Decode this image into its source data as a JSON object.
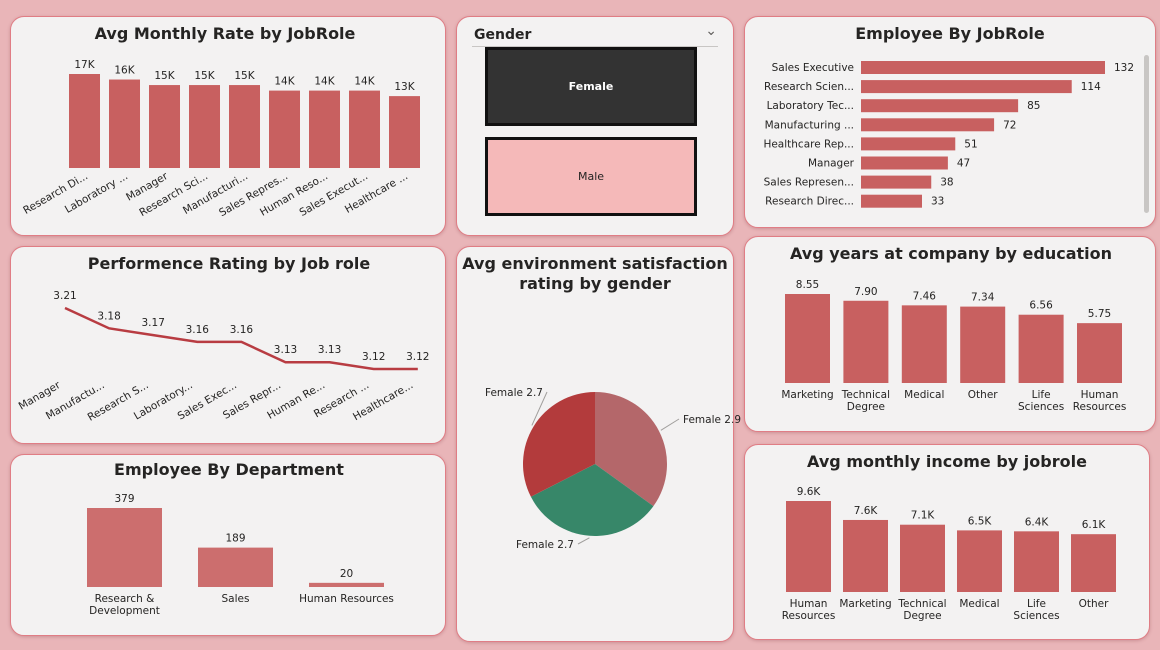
{
  "colors": {
    "bar": "#c86060",
    "bar_light": "#cc6e6e",
    "line": "#b83c42",
    "pie_1": "#b4676a",
    "pie_2": "#378769",
    "pie_3": "#b33b3c"
  },
  "slicer": {
    "title": "Gender",
    "options": [
      "Female",
      "Male"
    ],
    "chevron_icon": "chevron-down-icon"
  },
  "chart_data": [
    {
      "id": "avg-monthly-rate",
      "type": "bar",
      "title": "Avg Monthly Rate by JobRole",
      "categories": [
        "Research Di...",
        "Laboratory ...",
        "Manager",
        "Research Sci...",
        "Manufacturi...",
        "Sales Repres...",
        "Human Reso...",
        "Sales Execut...",
        "Healthcare ..."
      ],
      "values": [
        17,
        16,
        15,
        15,
        15,
        14,
        14,
        14,
        13
      ],
      "labels": [
        "17K",
        "16K",
        "15K",
        "15K",
        "15K",
        "14K",
        "14K",
        "14K",
        "13K"
      ],
      "ylim": [
        0,
        17
      ]
    },
    {
      "id": "employee-by-jobrole",
      "type": "bar",
      "orientation": "horizontal",
      "title": "Employee By JobRole",
      "categories": [
        "Sales Executive",
        "Research Scien...",
        "Laboratory Tec...",
        "Manufacturing ...",
        "Healthcare Rep...",
        "Manager",
        "Sales Represen...",
        "Research Direc..."
      ],
      "values": [
        132,
        114,
        85,
        72,
        51,
        47,
        38,
        33
      ],
      "xlim": [
        0,
        132
      ]
    },
    {
      "id": "performance-rating",
      "type": "line",
      "title": "Performence Rating by Job role",
      "categories": [
        "Manager",
        "Manufactu...",
        "Research S...",
        "Laboratory...",
        "Sales Exec...",
        "Sales Repr...",
        "Human Re...",
        "Research ...",
        "Healthcare..."
      ],
      "values": [
        3.21,
        3.18,
        3.17,
        3.16,
        3.16,
        3.13,
        3.13,
        3.12,
        3.12
      ],
      "ylim": [
        3.12,
        3.21
      ]
    },
    {
      "id": "env-satisfaction",
      "type": "pie",
      "title_lines": [
        "Avg environment satisfaction",
        "rating by gender"
      ],
      "slices": [
        {
          "label": "Female",
          "value": 2.9
        },
        {
          "label": "Female",
          "value": 2.7
        },
        {
          "label": "Female",
          "value": 2.7
        }
      ],
      "slice_labels": [
        "Female 2.9",
        "Female 2.7",
        "Female 2.7"
      ]
    },
    {
      "id": "years-at-company",
      "type": "bar",
      "title": "Avg years at company by education",
      "categories": [
        [
          "Marketing"
        ],
        [
          "Technical",
          "Degree"
        ],
        [
          "Medical"
        ],
        [
          "Other"
        ],
        [
          "Life",
          "Sciences"
        ],
        [
          "Human",
          "Resources"
        ]
      ],
      "values": [
        8.55,
        7.9,
        7.46,
        7.34,
        6.56,
        5.75
      ],
      "labels": [
        "8.55",
        "7.90",
        "7.46",
        "7.34",
        "6.56",
        "5.75"
      ],
      "ylim": [
        0,
        8.55
      ]
    },
    {
      "id": "employee-by-department",
      "type": "bar",
      "title": "Employee By Department",
      "categories": [
        [
          "Research &",
          "Development"
        ],
        [
          "Sales"
        ],
        [
          "Human Resources"
        ]
      ],
      "values": [
        379,
        189,
        20
      ],
      "labels": [
        "379",
        "189",
        "20"
      ],
      "ylim": [
        0,
        379
      ]
    },
    {
      "id": "monthly-income",
      "type": "bar",
      "title": "Avg monthly income by jobrole",
      "categories": [
        [
          "Human",
          "Resources"
        ],
        [
          "Marketing"
        ],
        [
          "Technical",
          "Degree"
        ],
        [
          "Medical"
        ],
        [
          "Life",
          "Sciences"
        ],
        [
          "Other"
        ]
      ],
      "values": [
        9.6,
        7.6,
        7.1,
        6.5,
        6.4,
        6.1
      ],
      "labels": [
        "9.6K",
        "7.6K",
        "7.1K",
        "6.5K",
        "6.4K",
        "6.1K"
      ],
      "ylim": [
        0,
        9.6
      ]
    }
  ]
}
